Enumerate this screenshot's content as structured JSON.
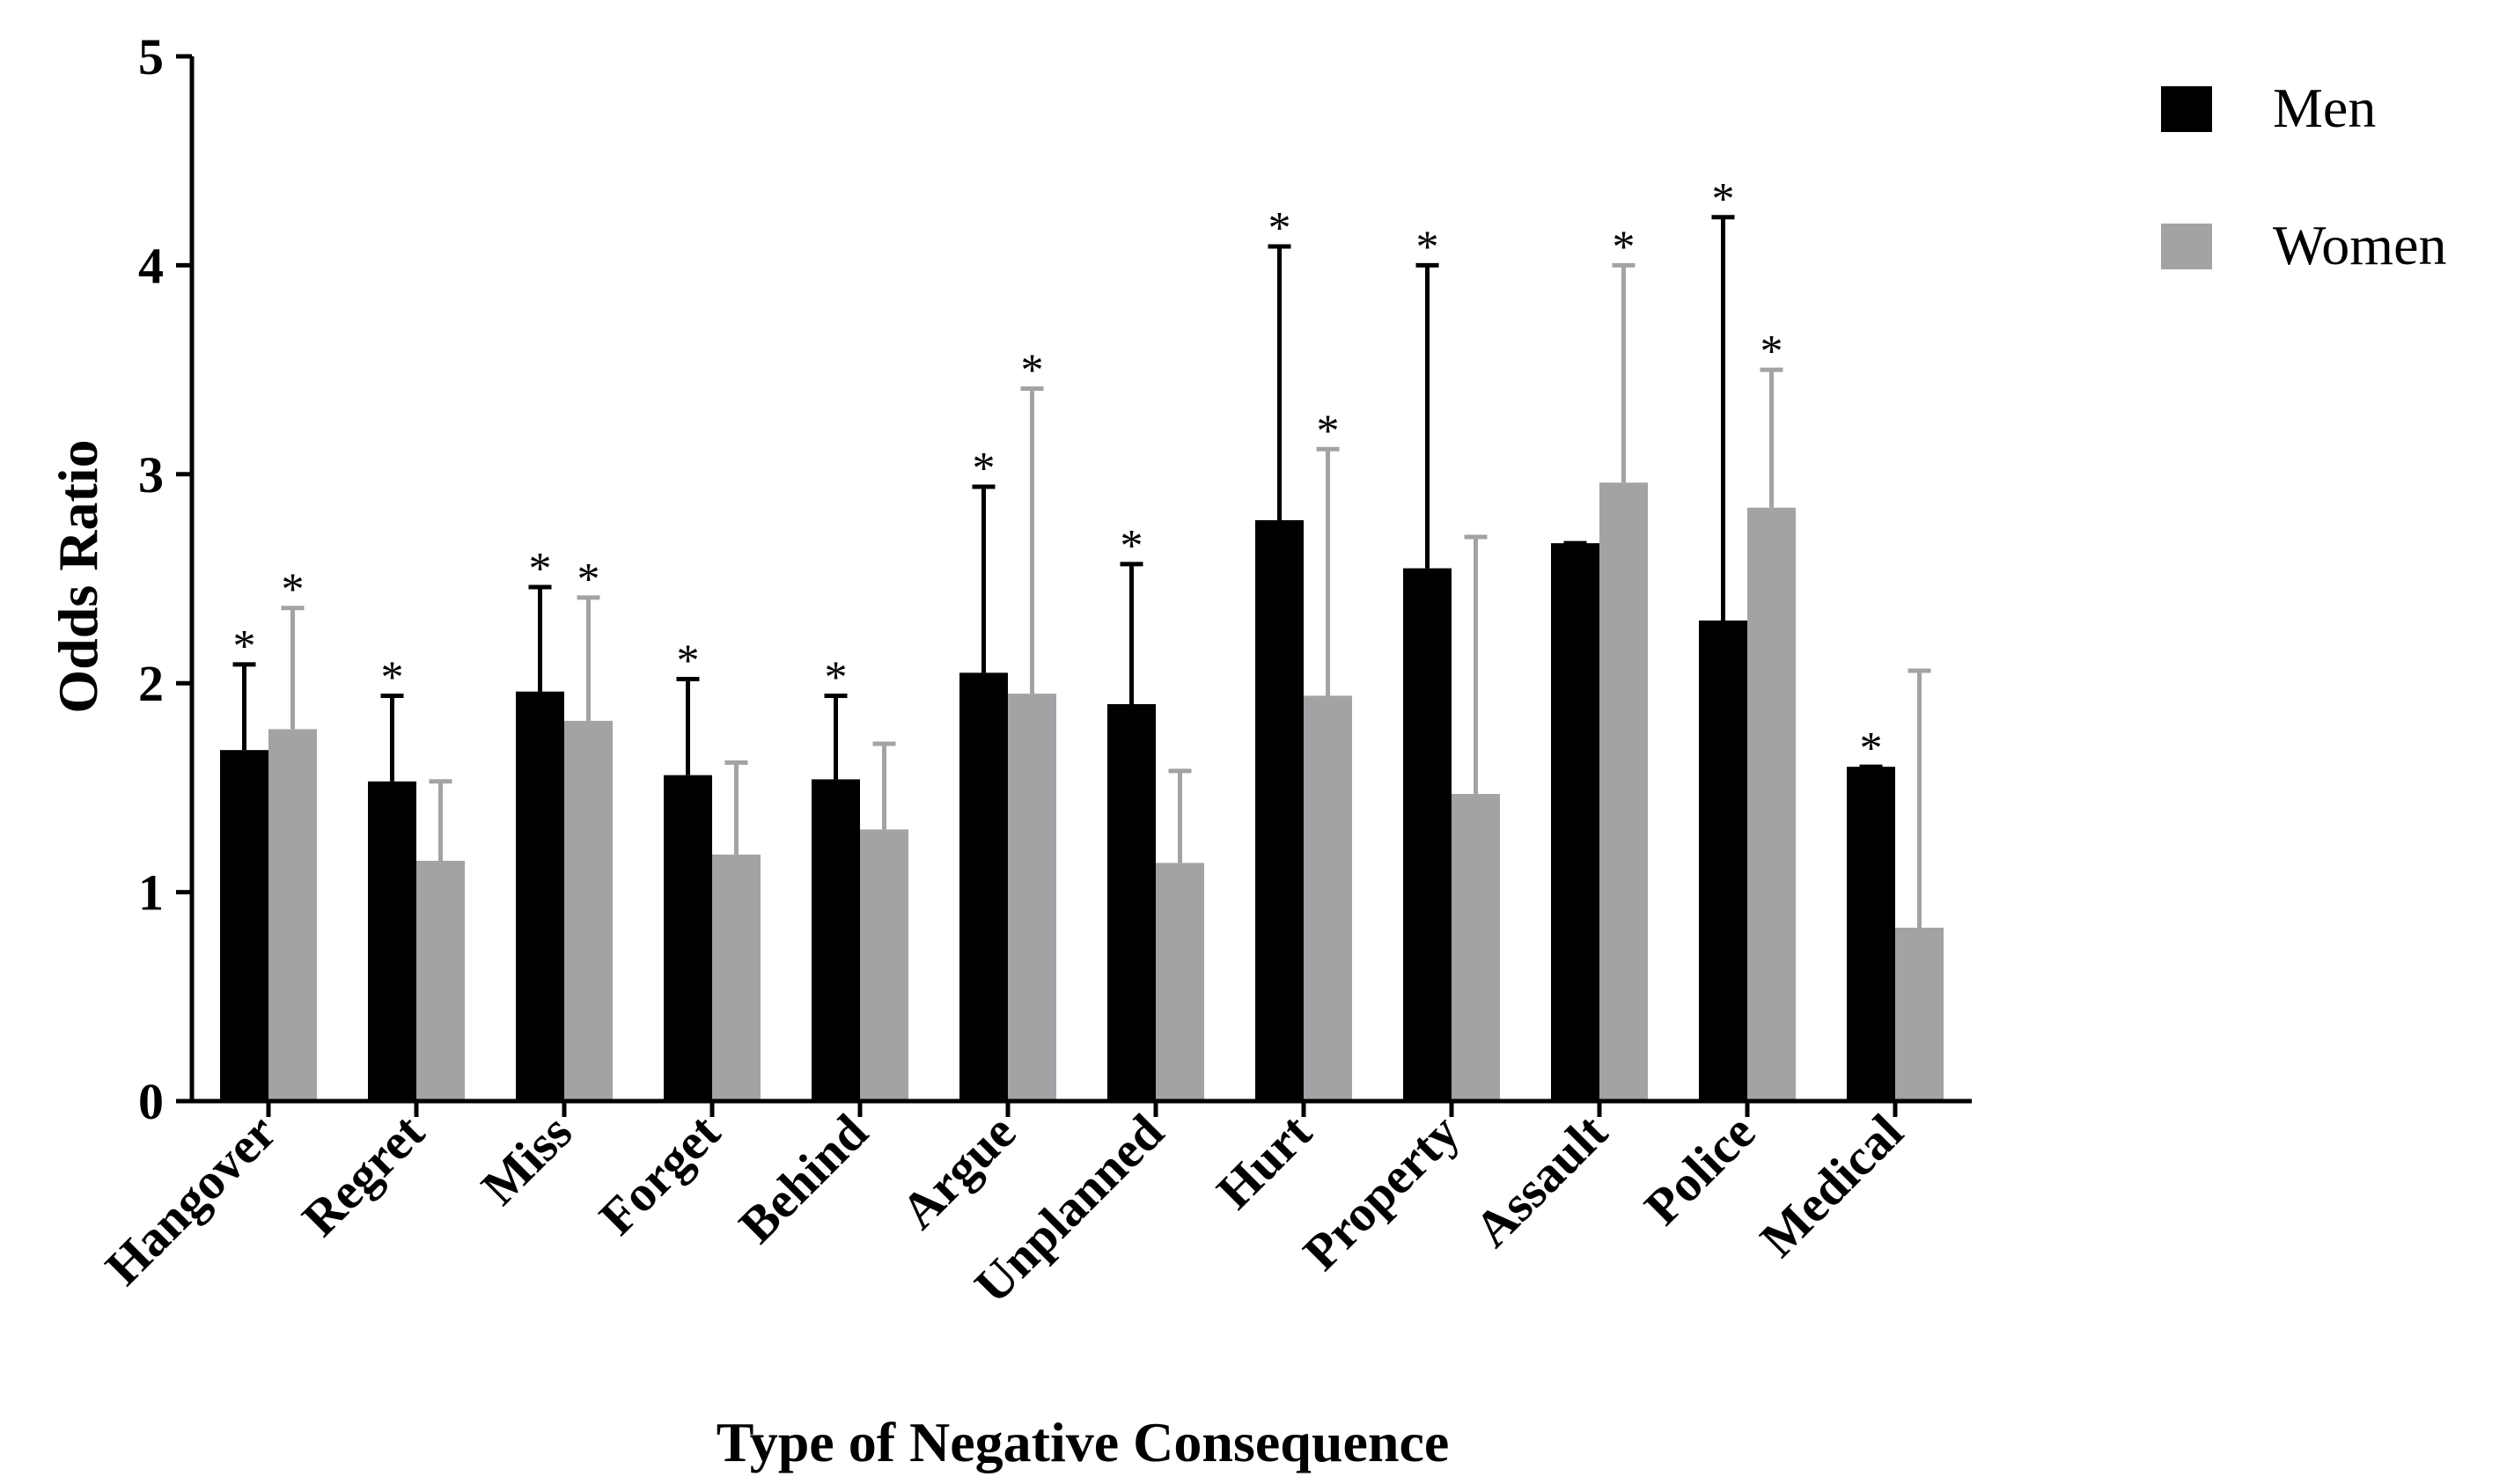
{
  "chart_data": {
    "type": "bar",
    "title": "",
    "xlabel": "Type of Negative Consequence",
    "ylabel": "Odds Ratio",
    "ylim": [
      0,
      5
    ],
    "yticks": [
      0,
      1,
      2,
      3,
      4,
      5
    ],
    "legend_position": "top-right",
    "significance_marker": "*",
    "categories": [
      "Hangover",
      "Regret",
      "Miss",
      "Forget",
      "Behind",
      "Argue",
      "Unplanned",
      "Hurt",
      "Property",
      "Assault",
      "Police",
      "Medical"
    ],
    "series": [
      {
        "name": "Men",
        "color": "#000000",
        "values": [
          1.68,
          1.53,
          1.96,
          1.56,
          1.54,
          2.05,
          1.9,
          2.78,
          2.55,
          2.67,
          2.3,
          1.6
        ],
        "error_upper": [
          2.09,
          1.94,
          2.46,
          2.02,
          1.94,
          2.94,
          2.57,
          4.09,
          4.0,
          2.67,
          4.23,
          1.6
        ],
        "significant": [
          true,
          true,
          true,
          true,
          true,
          true,
          true,
          true,
          true,
          false,
          true,
          true
        ]
      },
      {
        "name": "Women",
        "color": "#a3a3a6",
        "values": [
          1.78,
          1.15,
          1.82,
          1.18,
          1.3,
          1.95,
          1.14,
          1.94,
          1.47,
          2.96,
          2.84,
          0.83
        ],
        "error_upper": [
          2.36,
          1.53,
          2.41,
          1.62,
          1.71,
          3.41,
          1.58,
          3.12,
          2.7,
          4.0,
          3.5,
          2.06
        ],
        "significant": [
          true,
          false,
          true,
          false,
          false,
          true,
          false,
          true,
          false,
          true,
          true,
          false
        ]
      }
    ]
  }
}
